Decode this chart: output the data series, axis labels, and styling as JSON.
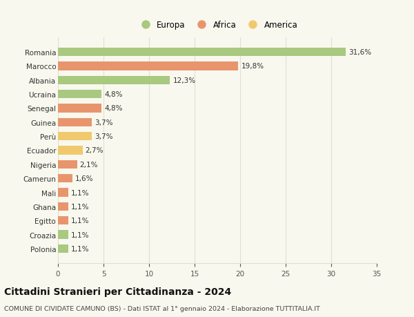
{
  "categories": [
    "Polonia",
    "Croazia",
    "Egitto",
    "Ghana",
    "Mali",
    "Camerun",
    "Nigeria",
    "Ecuador",
    "Perù",
    "Guinea",
    "Senegal",
    "Ucraina",
    "Albania",
    "Marocco",
    "Romania"
  ],
  "values": [
    1.1,
    1.1,
    1.1,
    1.1,
    1.1,
    1.6,
    2.1,
    2.7,
    3.7,
    3.7,
    4.8,
    4.8,
    12.3,
    19.8,
    31.6
  ],
  "labels": [
    "1,1%",
    "1,1%",
    "1,1%",
    "1,1%",
    "1,1%",
    "1,6%",
    "2,1%",
    "2,7%",
    "3,7%",
    "3,7%",
    "4,8%",
    "4,8%",
    "12,3%",
    "19,8%",
    "31,6%"
  ],
  "colors": [
    "#a8c97f",
    "#a8c97f",
    "#e8956d",
    "#e8956d",
    "#e8956d",
    "#e8956d",
    "#e8956d",
    "#f0c96e",
    "#f0c96e",
    "#e8956d",
    "#e8956d",
    "#a8c97f",
    "#a8c97f",
    "#e8956d",
    "#a8c97f"
  ],
  "legend": [
    {
      "label": "Europa",
      "color": "#a8c97f"
    },
    {
      "label": "Africa",
      "color": "#e8956d"
    },
    {
      "label": "America",
      "color": "#f0c96e"
    }
  ],
  "title": "Cittadini Stranieri per Cittadinanza - 2024",
  "subtitle": "COMUNE DI CIVIDATE CAMUNO (BS) - Dati ISTAT al 1° gennaio 2024 - Elaborazione TUTTITALIA.IT",
  "xlim": [
    0,
    35
  ],
  "xticks": [
    0,
    5,
    10,
    15,
    20,
    25,
    30,
    35
  ],
  "background_color": "#f8f8ee",
  "grid_color": "#e0e0d0",
  "bar_height": 0.6,
  "label_fontsize": 7.5,
  "tick_fontsize": 7.5,
  "title_fontsize": 10,
  "subtitle_fontsize": 6.8,
  "legend_fontsize": 8.5
}
